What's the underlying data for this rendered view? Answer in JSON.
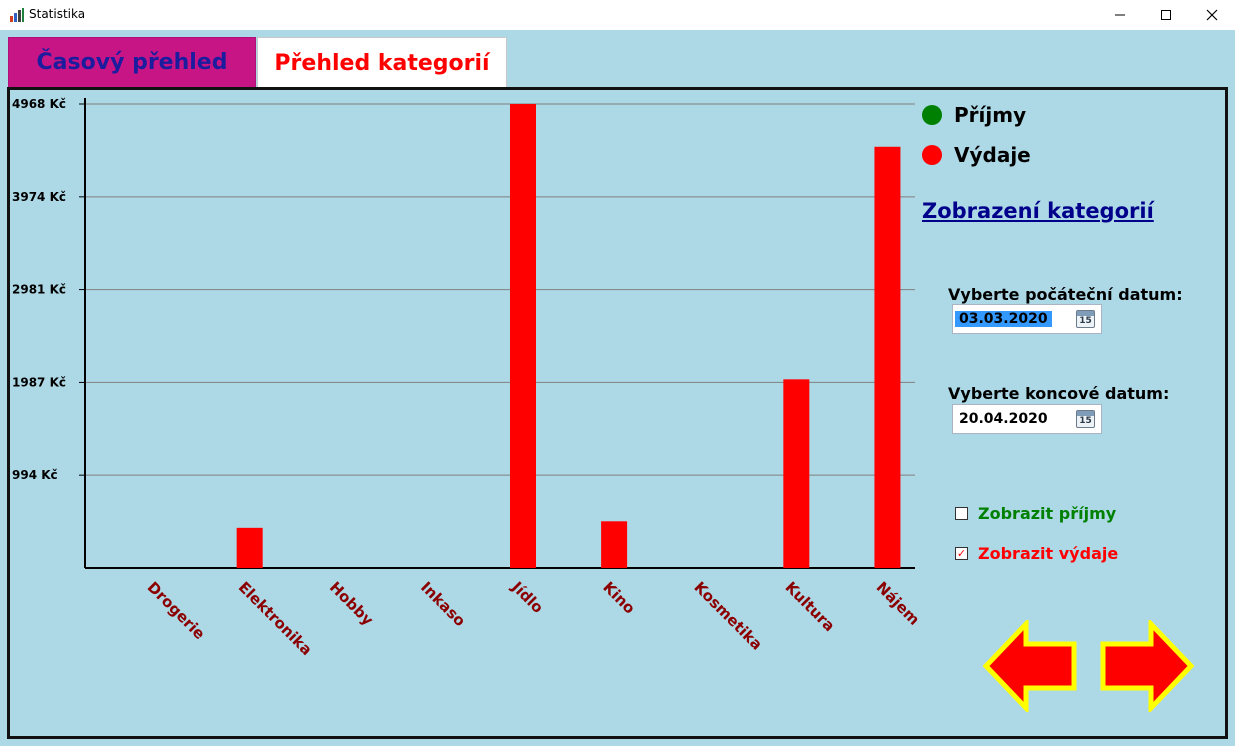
{
  "window": {
    "title": "Statistika",
    "icon": "bar-chart-app-icon",
    "controls": [
      "minimize-icon",
      "maximize-icon",
      "close-icon"
    ]
  },
  "tabs": [
    {
      "label": "Časový přehled",
      "active": false,
      "color": "#c71585"
    },
    {
      "label": "Přehled kategorií",
      "active": true,
      "color": "#ffffff"
    }
  ],
  "legend": [
    {
      "label": "Příjmy",
      "color": "#008000"
    },
    {
      "label": "Výdaje",
      "color": "#ff0000"
    }
  ],
  "category_link": "Zobrazení kategorií",
  "start_date": {
    "label": "Vyberte počáteční datum:",
    "value": "03.03.2020",
    "icon": "calendar-icon"
  },
  "end_date": {
    "label": "Vyberte koncové datum:",
    "value": "20.04.2020",
    "icon": "calendar-icon"
  },
  "checkboxes": [
    {
      "label": "Zobrazit příjmy",
      "checked": false,
      "color": "#008000"
    },
    {
      "label": "Zobrazit výdaje",
      "checked": true,
      "color": "#ff0000"
    }
  ],
  "nav": {
    "prev_icon": "arrow-left-icon",
    "next_icon": "arrow-right-icon",
    "fill": "#ff0000",
    "outline": "#ffff00"
  },
  "chart_data": {
    "type": "bar",
    "categories": [
      "Drogerie",
      "Elektronika",
      "Hobby",
      "Inkaso",
      "Jídlo",
      "Kino",
      "Kosmetika",
      "Kultura",
      "Nájem"
    ],
    "series": [
      {
        "name": "Výdaje",
        "color": "#ff0000",
        "values": [
          0,
          430,
          0,
          0,
          4968,
          500,
          0,
          2020,
          4510
        ]
      }
    ],
    "y_ticks": [
      "4968 Kč",
      "3974 Kč",
      "2981 Kč",
      "1987 Kč",
      "994 Kč"
    ],
    "y_tick_values": [
      4968,
      3974,
      2981,
      1987,
      994
    ],
    "ylim": [
      0,
      4968
    ],
    "grid": true,
    "legend": "top-right"
  }
}
